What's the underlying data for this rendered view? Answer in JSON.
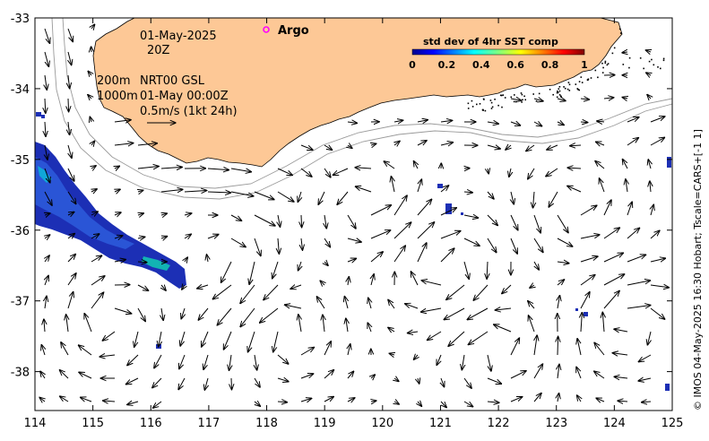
{
  "map": {
    "date_label": "01-May-2025",
    "time_label": "20Z",
    "depth_label_1": "200m",
    "depth_label_2": "1000m",
    "product_label": "NRT00 GSL",
    "product_time": "01-May 00:00Z",
    "scale_label": "0.5m/s (1kt 24h)",
    "argo_label": "Argo",
    "credit": "© IMOS 04-May-2025 16:30 Hobart; Tscale=CARS+[-1 1]",
    "x_ticks": [
      "114",
      "115",
      "116",
      "117",
      "118",
      "119",
      "120",
      "121",
      "122",
      "123",
      "124",
      "125"
    ],
    "y_ticks": [
      "-33",
      "-34",
      "-35",
      "-36",
      "-37",
      "-38"
    ],
    "lon_range": [
      114,
      125
    ],
    "lat_range": [
      -38.55,
      -33
    ],
    "land_color": "#fdc896",
    "argo_color": "#ff00ff"
  },
  "colorbar": {
    "title": "std dev of 4hr SST comp",
    "ticks": [
      "0",
      "0.2",
      "0.4",
      "0.6",
      "0.8",
      "1"
    ],
    "range": [
      0,
      1
    ]
  }
}
